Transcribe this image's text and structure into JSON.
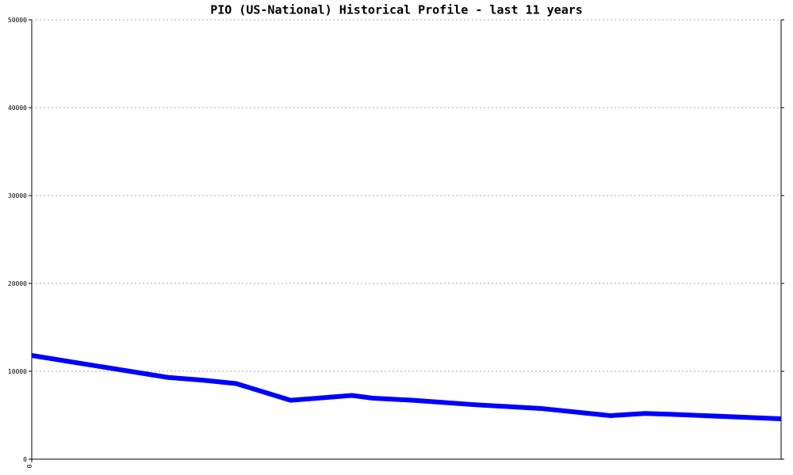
{
  "chart_data": {
    "type": "line",
    "title": "PIO (US-National) Historical Profile - last 11 years",
    "x": [
      0,
      2.0,
      2.5,
      3.0,
      3.8,
      4.7,
      5.0,
      5.6,
      6.5,
      7.5,
      8.5,
      9.0,
      9.4,
      11
    ],
    "series": [
      {
        "color": "#0000ff",
        "values": [
          11800,
          9300,
          9000,
          8600,
          6700,
          7250,
          6950,
          6700,
          6200,
          5750,
          4950,
          5200,
          5100,
          4600
        ]
      }
    ],
    "xlim": [
      0,
      11
    ],
    "xticks": [
      0
    ],
    "ylim": [
      0,
      50000
    ],
    "yticks": [
      0,
      10000,
      20000,
      30000,
      40000,
      50000
    ],
    "grid": true
  }
}
